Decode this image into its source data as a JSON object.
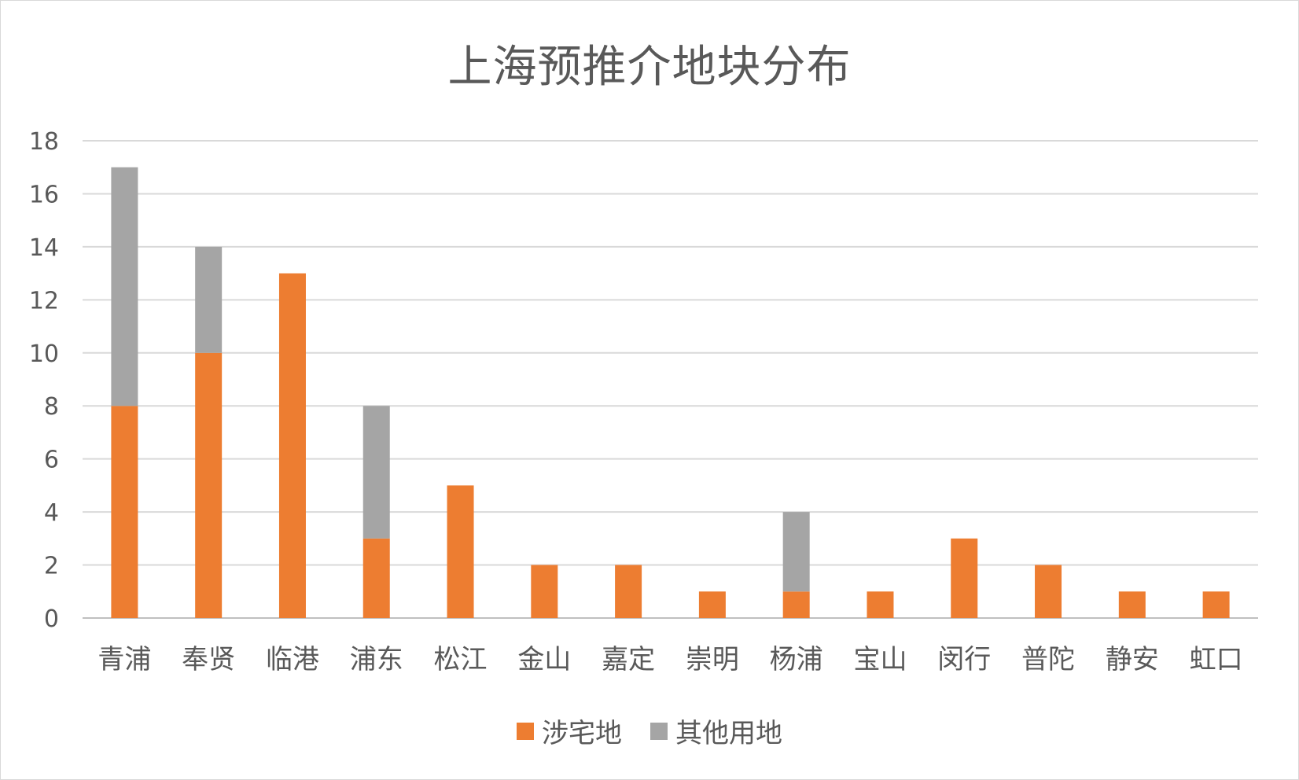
{
  "chart_data": {
    "type": "bar",
    "stacked": true,
    "title": "上海预推介地块分布",
    "categories": [
      "青浦",
      "奉贤",
      "临港",
      "浦东",
      "松江",
      "金山",
      "嘉定",
      "崇明",
      "杨浦",
      "宝山",
      "闵行",
      "普陀",
      "静安",
      "虹口"
    ],
    "series": [
      {
        "name": "涉宅地",
        "color": "#ED7D31",
        "values": [
          8,
          10,
          13,
          3,
          5,
          2,
          2,
          1,
          1,
          1,
          3,
          2,
          1,
          1
        ]
      },
      {
        "name": "其他用地",
        "color": "#A5A5A5",
        "values": [
          9,
          4,
          0,
          5,
          0,
          0,
          0,
          0,
          3,
          0,
          0,
          0,
          0,
          0
        ]
      }
    ],
    "ylim": [
      0,
      18
    ],
    "yticks": [
      0,
      2,
      4,
      6,
      8,
      10,
      12,
      14,
      16,
      18
    ],
    "grid": true,
    "legend_position": "bottom"
  }
}
